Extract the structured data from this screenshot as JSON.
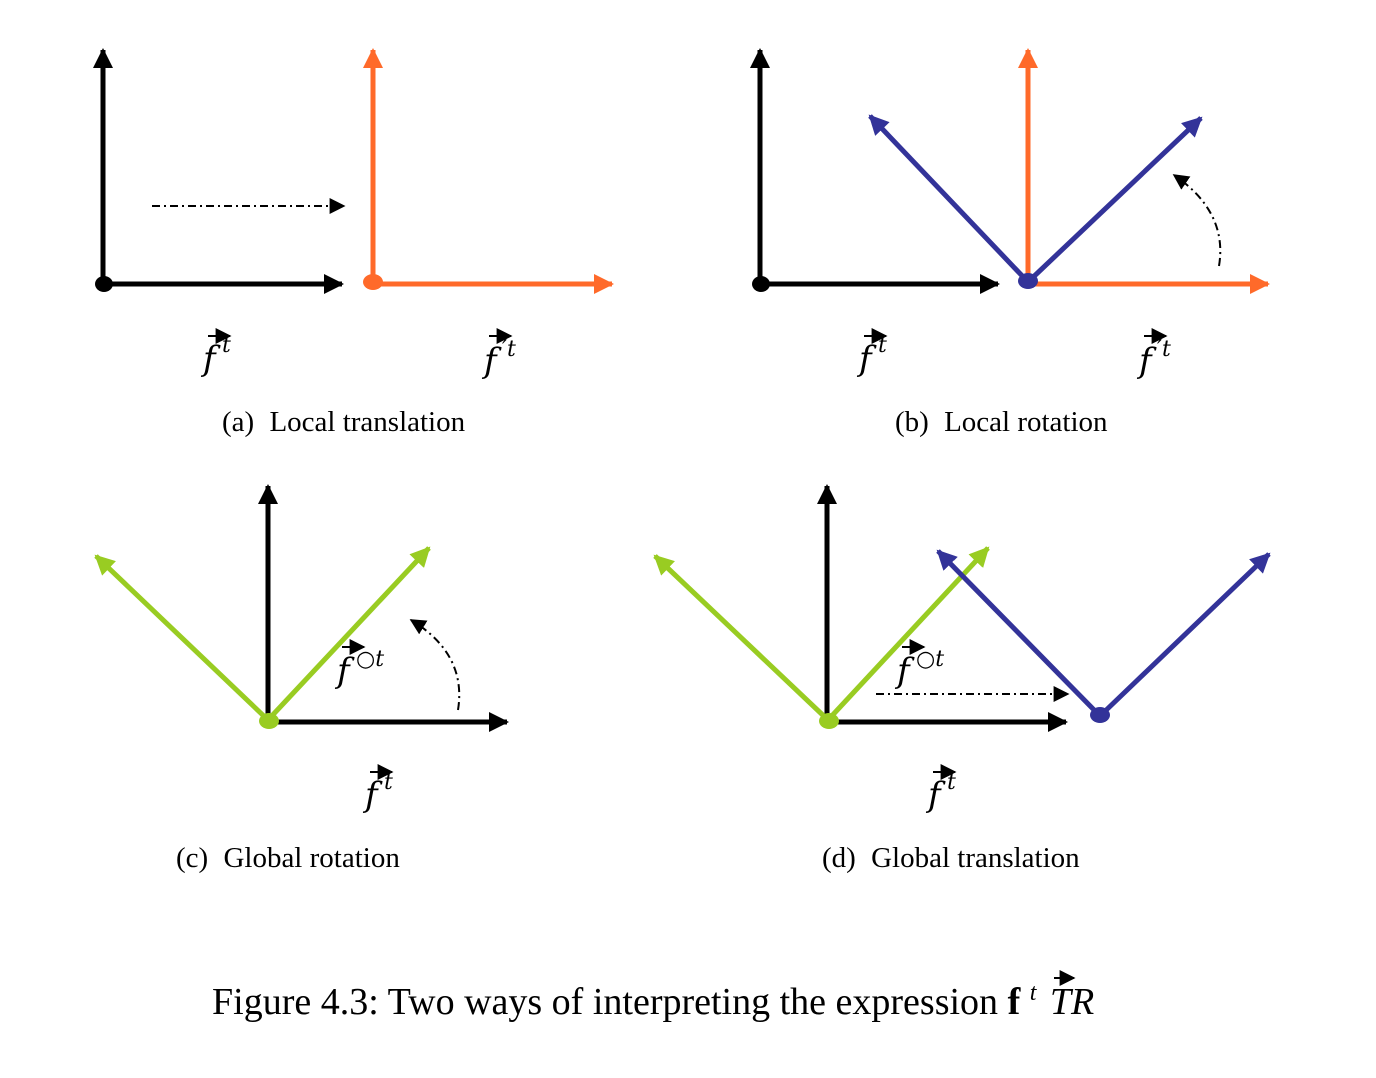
{
  "panels": [
    {
      "letter": "(a)",
      "caption": "Local translation",
      "label1_base": "f",
      "label1_sup": "t",
      "label2_base": "f",
      "label2_sup": "′t"
    },
    {
      "letter": "(b)",
      "caption": "Local rotation",
      "label1_base": "f",
      "label1_sup": "t",
      "label2_base": "f",
      "label2_sup": "′t"
    },
    {
      "letter": "(c)",
      "caption": "Global rotation",
      "label1_base": "f",
      "label1_sup": "t",
      "label2_base": "f",
      "label2_sup": "○t"
    },
    {
      "letter": "(d)",
      "caption": "Global translation",
      "label1_base": "f",
      "label1_sup": "t",
      "label2_base": "f",
      "label2_sup": "○t"
    }
  ],
  "figure_caption": {
    "prefix": "Figure 4.3: Two ways of interpreting the expression ",
    "bold_vector": "f",
    "sup": "t",
    "suffix": "TR"
  },
  "colors": {
    "black": "#000000",
    "orange": "#ff6a2a",
    "navy": "#333399",
    "green": "#99cc22"
  }
}
